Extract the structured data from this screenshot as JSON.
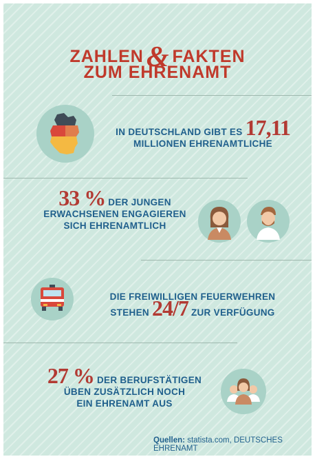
{
  "title": {
    "line1_left": "ZAHLEN",
    "ampersand": "&",
    "line1_right": "FAKTEN",
    "line2": "ZUM EHRENAMT"
  },
  "fact1": {
    "text_before": "IN DEUTSCHLAND GIBT ES",
    "number": "17,11",
    "text_after": "MILLIONEN EHRENAMTLICHE"
  },
  "fact2": {
    "number": "33 %",
    "line1": "DER JUNGEN",
    "line2": "ERWACHSENEN ENGAGIEREN",
    "line3": "SICH EHRENAMTLICH"
  },
  "fact3": {
    "line1": "DIE FREIWILLIGEN FEUERWEHREN",
    "before": "STEHEN",
    "number": "24/7",
    "after": "ZUR VERFÜGUNG"
  },
  "fact4": {
    "number": "27 %",
    "line1": "DER BERUFSTÄTIGEN",
    "line2": "ÜBEN ZUSÄTZLICH NOCH",
    "line3": "EIN EHRENAMT AUS"
  },
  "source": {
    "label": "Quellen:",
    "text": "statista.com, DEUTSCHES EHRENAMT"
  },
  "colors": {
    "background": "#cfe8df",
    "accent": "#c0392b",
    "text": "#1f5f8c",
    "circle": "#a9d2c7"
  },
  "icons": [
    "germany-map-icon",
    "woman-avatar-icon",
    "man-avatar-icon",
    "fire-truck-icon",
    "group-icon"
  ]
}
